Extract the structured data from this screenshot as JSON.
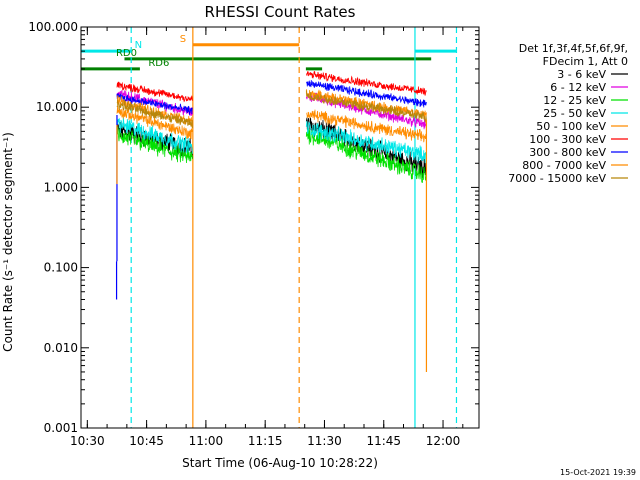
{
  "chart_data": {
    "type": "line",
    "title": "RHESSI Count Rates",
    "xlabel": "Start Time (06-Aug-10 10:28:22)",
    "ylabel": "Count Rate (s⁻¹ detector segment⁻¹)",
    "x_unit": "minutes after 10:28:22",
    "x_range": [
      0,
      100.7
    ],
    "y_scale": "log",
    "ylim": [
      0.001,
      100
    ],
    "x_ticks": [
      {
        "label": "10:30",
        "value": 1.6
      },
      {
        "label": "10:45",
        "value": 16.6
      },
      {
        "label": "11:00",
        "value": 31.6
      },
      {
        "label": "11:15",
        "value": 46.6
      },
      {
        "label": "11:30",
        "value": 61.6
      },
      {
        "label": "11:45",
        "value": 76.6
      },
      {
        "label": "12:00",
        "value": 91.6
      }
    ],
    "y_ticks": [
      {
        "label": "100.000",
        "value": 100
      },
      {
        "label": "10.000",
        "value": 10
      },
      {
        "label": "1.000",
        "value": 1
      },
      {
        "label": "0.100",
        "value": 0.1
      },
      {
        "label": "0.010",
        "value": 0.01
      },
      {
        "label": "0.001",
        "value": 0.001
      }
    ],
    "legend": {
      "position": "right",
      "header": [
        "Det 1f,3f,4f,5f,6f,9f,",
        "FDecim 1, Att 0"
      ],
      "entries": [
        {
          "label": "3 - 6 keV",
          "color": "#000000"
        },
        {
          "label": "6 - 12 keV",
          "color": "#e000e0"
        },
        {
          "label": "12 - 25 keV",
          "color": "#00e000"
        },
        {
          "label": "25 - 50 keV",
          "color": "#00e8e8"
        },
        {
          "label": "50 - 100 keV",
          "color": "#ff8c00"
        },
        {
          "label": "100 - 300 keV",
          "color": "#ff0000"
        },
        {
          "label": "300 - 800 keV",
          "color": "#0000ff"
        },
        {
          "label": "800 - 7000 keV",
          "color": "#ff8c00"
        },
        {
          "label": "7000 - 15000 keV",
          "color": "#b8860b"
        }
      ]
    },
    "segments": [
      {
        "start": 9.1,
        "end": 28.2
      },
      {
        "start": 57.0,
        "end": 87.4
      }
    ],
    "series": [
      {
        "name": "3 - 6 keV",
        "color": "#000000",
        "seg1": [
          5.2,
          3.0
        ],
        "seg2": [
          6.2,
          1.7
        ],
        "noise": 0.1
      },
      {
        "name": "6 - 12 keV",
        "color": "#e000e0",
        "seg1": [
          15.0,
          8.5
        ],
        "seg2": [
          14.0,
          6.0
        ],
        "noise": 0.05
      },
      {
        "name": "12 - 25 keV",
        "color": "#00e000",
        "seg1": [
          4.5,
          2.3
        ],
        "seg2": [
          4.7,
          1.4
        ],
        "noise": 0.09
      },
      {
        "name": "25 - 50 keV",
        "color": "#00e8e8",
        "seg1": [
          6.3,
          3.2
        ],
        "seg2": [
          5.5,
          2.5
        ],
        "noise": 0.08
      },
      {
        "name": "50 - 100 keV",
        "color": "#ff8c00",
        "seg1": [
          9.0,
          4.6
        ],
        "seg2": [
          8.3,
          4.2
        ],
        "noise": 0.06
      },
      {
        "name": "100 - 300 keV",
        "color": "#ff0000",
        "seg1": [
          19.0,
          12.5
        ],
        "seg2": [
          26.0,
          15.5
        ],
        "noise": 0.04
      },
      {
        "name": "300 - 800 keV",
        "color": "#0000ff",
        "seg1": [
          13.5,
          9.0
        ],
        "seg2": [
          20.0,
          11.0
        ],
        "noise": 0.04
      },
      {
        "name": "800 - 7000 keV",
        "color": "#ff8c00",
        "seg1": [
          12.0,
          6.5
        ],
        "seg2": [
          15.0,
          8.0
        ],
        "noise": 0.05
      },
      {
        "name": "7000 - 15000 keV",
        "color": "#b8860b",
        "seg1": [
          11.0,
          6.2
        ],
        "seg2": [
          14.0,
          7.5
        ],
        "noise": 0.05
      }
    ],
    "flags": [
      {
        "label": "N",
        "color": "#00e8e8",
        "y": 50,
        "intervals": [
          [
            0,
            12.7
          ],
          [
            84.5,
            95.0
          ]
        ],
        "label_at": 14.5
      },
      {
        "label": "RD0",
        "color": "#008000",
        "y": 40,
        "intervals": [
          [
            11.0,
            88.6
          ]
        ],
        "label_at": 11.5
      },
      {
        "label": "RD6",
        "color": "#008000",
        "y": 30,
        "intervals": [
          [
            0,
            14.9
          ],
          [
            56.9,
            61.0
          ]
        ],
        "label_at": 19.7
      },
      {
        "label": "S",
        "color": "#ff8c00",
        "y": 60,
        "intervals": [
          [
            28.3,
            55.2
          ]
        ],
        "label_at": 25.8
      }
    ],
    "vlines": [
      {
        "x": 12.7,
        "color": "#00e8e8",
        "style": "dashed"
      },
      {
        "x": 84.5,
        "color": "#00e8e8",
        "style": "solid"
      },
      {
        "x": 95.0,
        "color": "#00e8e8",
        "style": "dashed"
      },
      {
        "x": 28.3,
        "color": "#ff8c00",
        "style": "solid"
      },
      {
        "x": 55.2,
        "color": "#ff8c00",
        "style": "dashed"
      }
    ],
    "drops": [
      {
        "x": 9.1,
        "color": "#0000ff",
        "from": 8.0,
        "to": 0.12
      },
      {
        "x": 9.1,
        "color": "#ff8c00",
        "from": 6.0,
        "to": 1.1
      },
      {
        "x": 9.0,
        "color": "#0000ff",
        "from": 0.12,
        "to": 0.04
      },
      {
        "x": 87.4,
        "color": "#ff8c00",
        "from": 7.0,
        "to": 0.005
      }
    ],
    "timestamp": "15-Oct-2021 19:39"
  }
}
